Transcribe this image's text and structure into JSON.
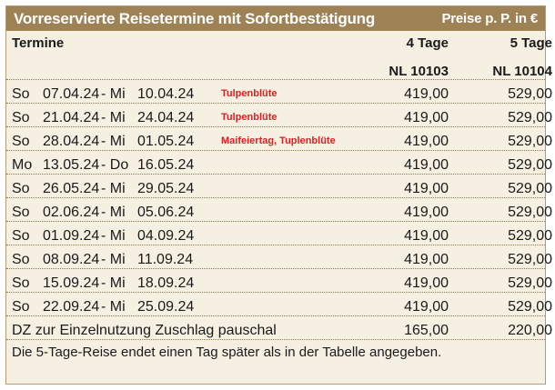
{
  "title": "Vorreservierte Reisetermine mit Sofortbestätigung",
  "price_note": "Preise p. P. in €",
  "header": {
    "col_dates": "Termine",
    "col_a_duration": "4 Tage",
    "col_b_duration": "5 Tage",
    "col_a_code": "NL 10103",
    "col_b_code": "NL 10104"
  },
  "rows": [
    {
      "d1": "So",
      "date1": "07.04.24",
      "d2": "- Mi",
      "date2": "10.04.24",
      "note": "Tulpenblüte",
      "price_a": "419,00",
      "price_b": "529,00"
    },
    {
      "d1": "So",
      "date1": "21.04.24",
      "d2": "- Mi",
      "date2": "24.04.24",
      "note": "Tulpenblüte",
      "price_a": "419,00",
      "price_b": "529,00"
    },
    {
      "d1": "So",
      "date1": "28.04.24",
      "d2": "- Mi",
      "date2": "01.05.24",
      "note": "Maifeiertag, Tuplenblüte",
      "price_a": "419,00",
      "price_b": "529,00"
    },
    {
      "d1": "Mo",
      "date1": "13.05.24",
      "d2": "- Do",
      "date2": "16.05.24",
      "note": "",
      "price_a": "419,00",
      "price_b": "529,00"
    },
    {
      "d1": "So",
      "date1": "26.05.24",
      "d2": "- Mi",
      "date2": "29.05.24",
      "note": "",
      "price_a": "419,00",
      "price_b": "529,00"
    },
    {
      "d1": "So",
      "date1": "02.06.24",
      "d2": "- Mi",
      "date2": "05.06.24",
      "note": "",
      "price_a": "419,00",
      "price_b": "529,00"
    },
    {
      "d1": "So",
      "date1": "01.09.24",
      "d2": "- Mi",
      "date2": "04.09.24",
      "note": "",
      "price_a": "419,00",
      "price_b": "529,00"
    },
    {
      "d1": "So",
      "date1": "08.09.24",
      "d2": "- Mi",
      "date2": "11.09.24",
      "note": "",
      "price_a": "419,00",
      "price_b": "529,00"
    },
    {
      "d1": "So",
      "date1": "15.09.24",
      "d2": "- Mi",
      "date2": "18.09.24",
      "note": "",
      "price_a": "419,00",
      "price_b": "529,00"
    },
    {
      "d1": "So",
      "date1": "22.09.24",
      "d2": "- Mi",
      "date2": "25.09.24",
      "note": "",
      "price_a": "419,00",
      "price_b": "529,00"
    }
  ],
  "surcharge": {
    "label": "DZ zur Einzelnutzung Zuschlag pauschal",
    "price_a": "165,00",
    "price_b": "220,00"
  },
  "remark": "Die 5-Tage-Reise endet einen Tag später als in der Tabelle angegeben.",
  "colors": {
    "title_bg": "#9e8155",
    "table_bg": "#f5f0e1",
    "note_red": "#e02020"
  }
}
